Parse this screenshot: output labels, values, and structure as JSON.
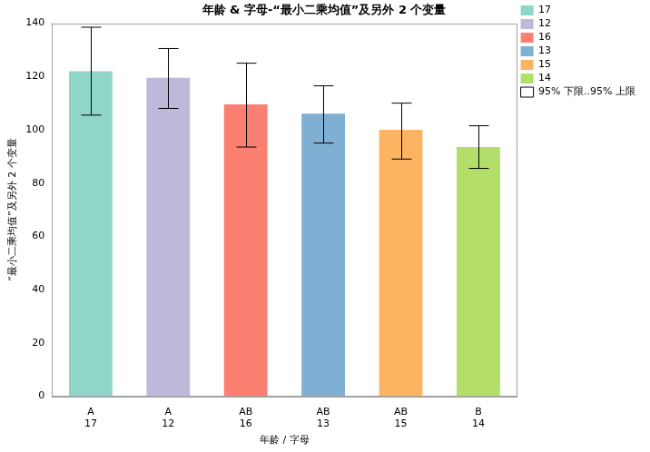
{
  "chart_data": {
    "type": "bar",
    "title": "年龄 & 字母-“最小二乘均值”及另外 2 个变量",
    "x_label": "年龄 / 字母",
    "y_label": "“最小二乘均值”及另外 2 个变量",
    "categories": [
      "17",
      "12",
      "16",
      "13",
      "15",
      "14"
    ],
    "letters": [
      "A",
      "A",
      "AB",
      "AB",
      "AB",
      "B"
    ],
    "values": [
      122,
      119.5,
      109.5,
      106,
      100,
      93.5
    ],
    "colors": [
      "#8fd5c8",
      "#bdb9da",
      "#fb8072",
      "#7fb0d3",
      "#fdb462",
      "#b3de69"
    ],
    "error_bars": {
      "name": "95% 下限..95% 上限",
      "lower": [
        105.5,
        108,
        93.5,
        95,
        89,
        85.5
      ],
      "upper": [
        138.5,
        130.5,
        125,
        116.5,
        110,
        101.5
      ]
    },
    "ylim": [
      0,
      140
    ],
    "yticks": [
      0,
      20,
      40,
      60,
      80,
      100,
      120,
      140
    ],
    "grid": false,
    "legend": "right"
  }
}
